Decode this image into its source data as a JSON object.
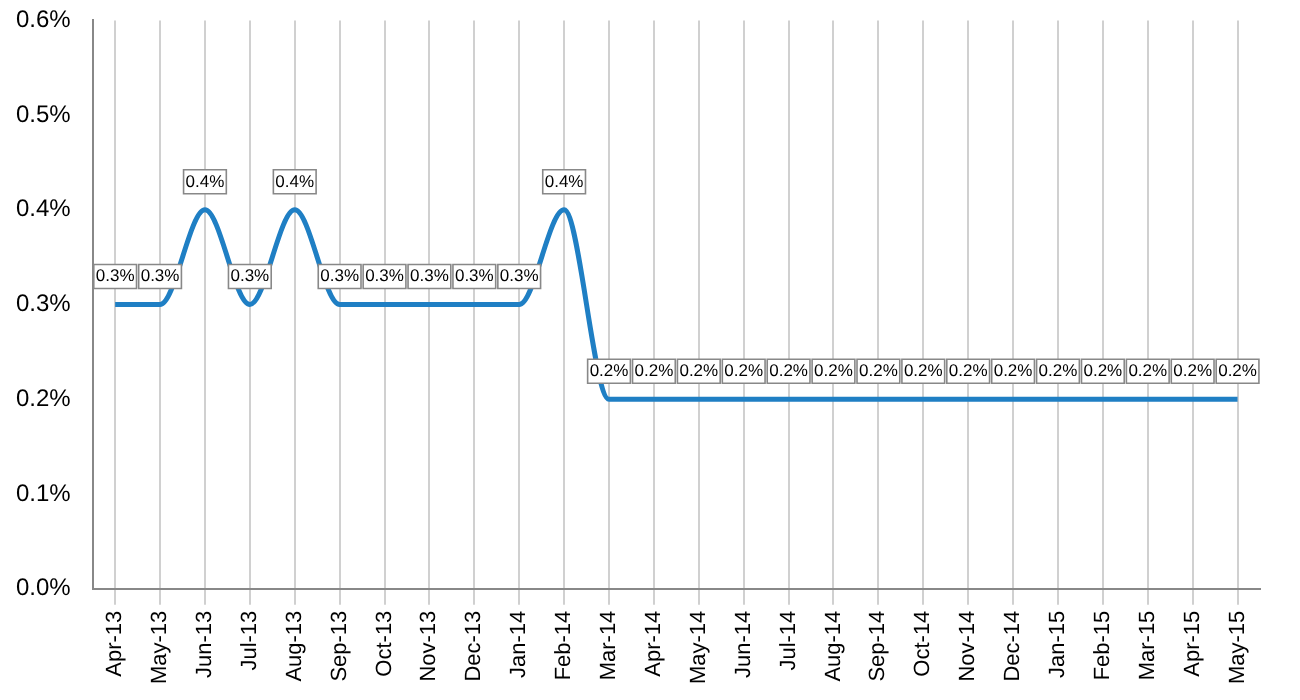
{
  "chart_data": {
    "type": "line",
    "categories": [
      "Apr-13",
      "May-13",
      "Jun-13",
      "Jul-13",
      "Aug-13",
      "Sep-13",
      "Oct-13",
      "Nov-13",
      "Dec-13",
      "Jan-14",
      "Feb-14",
      "Mar-14",
      "Apr-14",
      "May-14",
      "Jun-14",
      "Jul-14",
      "Aug-14",
      "Sep-14",
      "Oct-14",
      "Nov-14",
      "Dec-14",
      "Jan-15",
      "Feb-15",
      "Mar-15",
      "Apr-15",
      "May-15"
    ],
    "series": [
      {
        "color": "#1f7fc4",
        "values": [
          0.3,
          0.3,
          0.4,
          0.3,
          0.4,
          0.3,
          0.3,
          0.3,
          0.3,
          0.3,
          0.4,
          0.2,
          0.2,
          0.2,
          0.2,
          0.2,
          0.2,
          0.2,
          0.2,
          0.2,
          0.2,
          0.2,
          0.2,
          0.2,
          0.2,
          0.2
        ],
        "value_labels": [
          "0.3%",
          "0.3%",
          "0.4%",
          "0.3%",
          "0.4%",
          "0.3%",
          "0.3%",
          "0.3%",
          "0.3%",
          "0.3%",
          "0.4%",
          "0.2%",
          "0.2%",
          "0.2%",
          "0.2%",
          "0.2%",
          "0.2%",
          "0.2%",
          "0.2%",
          "0.2%",
          "0.2%",
          "0.2%",
          "0.2%",
          "0.2%",
          "0.2%",
          "0.2%"
        ]
      }
    ],
    "ylim": [
      0,
      0.6
    ],
    "yticks": [
      {
        "value": 0,
        "label": "0.0%"
      },
      {
        "value": 0.1,
        "label": "0.1%"
      },
      {
        "value": 0.2,
        "label": "0.2%"
      },
      {
        "value": 0.3,
        "label": "0.3%"
      },
      {
        "value": 0.4,
        "label": "0.4%"
      },
      {
        "value": 0.5,
        "label": "0.5%"
      },
      {
        "value": 0.6,
        "label": "0.6%"
      }
    ],
    "grid": "x",
    "legend": false,
    "marker": "none",
    "line_style": "solid"
  }
}
